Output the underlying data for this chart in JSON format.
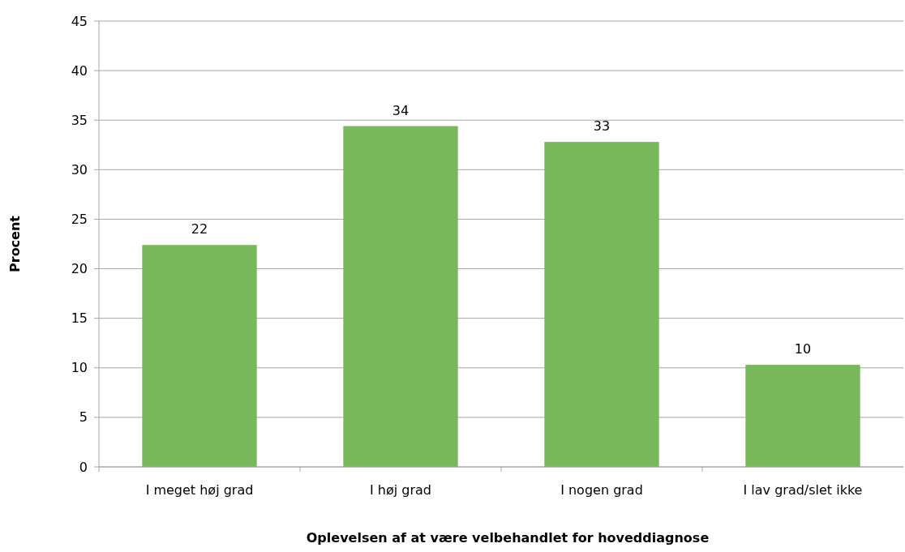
{
  "chart_data": {
    "type": "bar",
    "xlabel": "Oplevelsen af at være velbehandlet for hoveddiagnose",
    "ylabel": "Procent",
    "categories": [
      "I meget høj grad",
      "I høj grad",
      "I nogen grad",
      "I lav grad/slet ikke"
    ],
    "values": [
      22.4,
      34.4,
      32.8,
      10.3
    ],
    "value_labels": [
      "22",
      "34",
      "33",
      "10"
    ],
    "color": "#7ab85c",
    "ylim": [
      0,
      45
    ],
    "yticks": [
      0,
      5,
      10,
      15,
      20,
      25,
      30,
      35,
      40,
      45
    ],
    "grid": "y"
  }
}
